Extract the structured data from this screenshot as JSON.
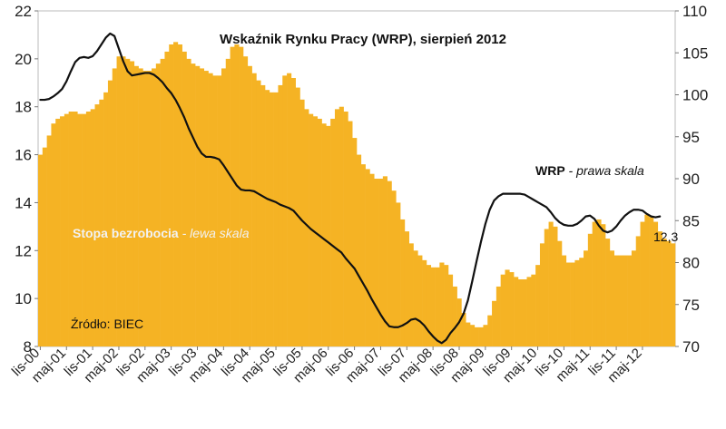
{
  "chart_data": {
    "type": "bar+line",
    "title": "Wskaźnik Rynku Pracy (WRP), sierpień 2012",
    "series": [
      {
        "name": "Stopa bezrobocia",
        "axis": "left",
        "kind": "bar",
        "color": "#f5b324",
        "start": "2000-11",
        "values": [
          16.0,
          16.3,
          16.8,
          17.3,
          17.5,
          17.6,
          17.7,
          17.8,
          17.8,
          17.7,
          17.7,
          17.8,
          17.9,
          18.1,
          18.3,
          18.6,
          19.1,
          19.6,
          20.1,
          20.1,
          20.0,
          19.9,
          19.7,
          19.6,
          19.5,
          19.5,
          19.6,
          19.8,
          20.0,
          20.3,
          20.6,
          20.7,
          20.6,
          20.3,
          20.0,
          19.8,
          19.7,
          19.6,
          19.5,
          19.4,
          19.3,
          19.3,
          19.6,
          20.0,
          20.5,
          20.6,
          20.5,
          20.1,
          19.7,
          19.4,
          19.1,
          18.9,
          18.7,
          18.6,
          18.6,
          18.9,
          19.3,
          19.4,
          19.2,
          18.8,
          18.3,
          17.9,
          17.7,
          17.6,
          17.5,
          17.3,
          17.2,
          17.5,
          17.9,
          18.0,
          17.8,
          17.4,
          16.7,
          16.0,
          15.6,
          15.4,
          15.2,
          15.0,
          15.0,
          15.1,
          14.9,
          14.5,
          14.0,
          13.3,
          12.8,
          12.3,
          12.0,
          11.8,
          11.6,
          11.4,
          11.3,
          11.3,
          11.5,
          11.4,
          11.0,
          10.5,
          10.0,
          9.4,
          9.0,
          8.9,
          8.8,
          8.8,
          8.9,
          9.3,
          9.9,
          10.5,
          11.0,
          11.2,
          11.1,
          10.9,
          10.8,
          10.8,
          10.9,
          11.0,
          11.4,
          12.3,
          12.9,
          13.2,
          13.0,
          12.4,
          11.8,
          11.5,
          11.5,
          11.6,
          11.7,
          12.0,
          12.7,
          13.2,
          13.3,
          13.1,
          12.5,
          12.0,
          11.8,
          11.8,
          11.8,
          11.8,
          12.0,
          12.6,
          13.2,
          13.5,
          13.4,
          13.2,
          12.8,
          12.5,
          12.4,
          12.3
        ]
      },
      {
        "name": "WRP",
        "axis": "right",
        "kind": "line",
        "color": "#111111",
        "start": "2000-11",
        "values": [
          99.4,
          99.4,
          99.5,
          99.8,
          100.2,
          100.7,
          101.6,
          102.8,
          103.9,
          104.4,
          104.5,
          104.4,
          104.6,
          105.2,
          106.0,
          106.8,
          107.3,
          107.0,
          105.5,
          104.0,
          102.8,
          102.3,
          102.4,
          102.5,
          102.6,
          102.6,
          102.4,
          102.0,
          101.5,
          100.8,
          100.2,
          99.4,
          98.4,
          97.3,
          96.0,
          94.9,
          93.8,
          93.0,
          92.6,
          92.6,
          92.5,
          92.3,
          91.6,
          90.8,
          90.0,
          89.2,
          88.7,
          88.6,
          88.6,
          88.5,
          88.2,
          87.9,
          87.6,
          87.4,
          87.2,
          86.9,
          86.7,
          86.5,
          86.2,
          85.6,
          85.0,
          84.5,
          84.0,
          83.6,
          83.2,
          82.8,
          82.4,
          82.0,
          81.6,
          81.2,
          80.5,
          79.9,
          79.3,
          78.4,
          77.5,
          76.6,
          75.6,
          74.7,
          73.8,
          73.0,
          72.4,
          72.3,
          72.3,
          72.5,
          72.8,
          73.2,
          73.3,
          73.0,
          72.5,
          71.8,
          71.2,
          70.7,
          70.4,
          70.8,
          71.6,
          72.2,
          72.9,
          73.9,
          75.5,
          77.8,
          80.2,
          82.5,
          84.6,
          86.3,
          87.4,
          87.9,
          88.2,
          88.2,
          88.2,
          88.2,
          88.2,
          88.1,
          87.8,
          87.5,
          87.2,
          86.9,
          86.6,
          86.0,
          85.3,
          84.8,
          84.5,
          84.4,
          84.4,
          84.6,
          85.0,
          85.5,
          85.6,
          85.2,
          84.4,
          83.8,
          83.6,
          83.8,
          84.3,
          85.0,
          85.6,
          86.0,
          86.3,
          86.3,
          86.2,
          85.8,
          85.5,
          85.4,
          85.5
        ]
      }
    ],
    "y_left": {
      "range": [
        8,
        22
      ],
      "ticks": [
        "8",
        "10",
        "12",
        "14",
        "16",
        "18",
        "20",
        "22"
      ]
    },
    "y_right": {
      "range": [
        70,
        110
      ],
      "ticks": [
        "70",
        "75",
        "80",
        "85",
        "90",
        "95",
        "100",
        "105",
        "110"
      ]
    },
    "x_tick_labels": [
      "lis-00",
      "maj-01",
      "lis-01",
      "maj-02",
      "lis-02",
      "maj-03",
      "lis-03",
      "maj-04",
      "lis-04",
      "maj-05",
      "lis-05",
      "maj-06",
      "lis-06",
      "maj-07",
      "lis-07",
      "maj-08",
      "lis-08",
      "maj-09",
      "lis-09",
      "maj-10",
      "lis-10",
      "maj-11",
      "lis-11",
      "maj-12"
    ],
    "annotations": {
      "wrp_label": "WRP",
      "wrp_suffix": " - prawa skala",
      "bar_label_bold": "Stopa bezrobocia",
      "bar_label_suffix": " - lewa skala",
      "source": "Źródło: BIEC",
      "last_value": "12,3"
    },
    "grid": false,
    "legend": "none"
  }
}
